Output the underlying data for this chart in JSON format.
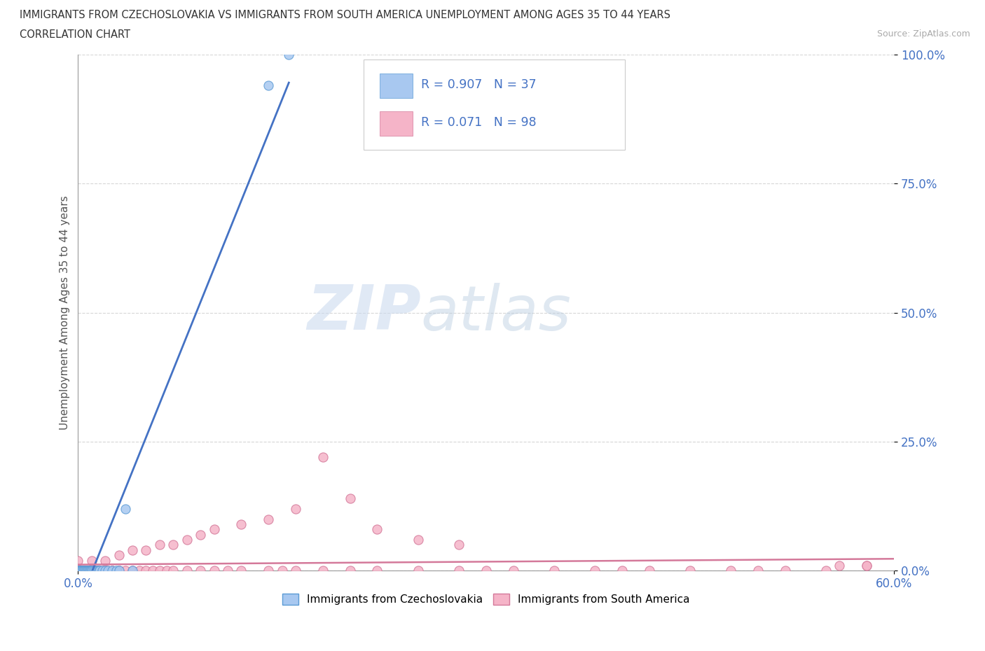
{
  "title_line1": "IMMIGRANTS FROM CZECHOSLOVAKIA VS IMMIGRANTS FROM SOUTH AMERICA UNEMPLOYMENT AMONG AGES 35 TO 44 YEARS",
  "title_line2": "CORRELATION CHART",
  "source_text": "Source: ZipAtlas.com",
  "ylabel_text": "Unemployment Among Ages 35 to 44 years",
  "xlim": [
    0.0,
    0.6
  ],
  "ylim": [
    0.0,
    1.0
  ],
  "xtick_vals": [
    0.0,
    0.6
  ],
  "xtick_labels": [
    "0.0%",
    "60.0%"
  ],
  "ytick_vals": [
    0.0,
    0.25,
    0.5,
    0.75,
    1.0
  ],
  "ytick_labels": [
    "0.0%",
    "25.0%",
    "50.0%",
    "75.0%",
    "100.0%"
  ],
  "czech_color": "#a8c8f0",
  "czech_edge_color": "#5b9bd5",
  "czech_line_color": "#4472c4",
  "sa_color": "#f5b4c8",
  "sa_edge_color": "#d4799a",
  "sa_line_color": "#d4799a",
  "tick_color": "#4472c4",
  "legend_color": "#4472c4",
  "watermark_zip": "ZIP",
  "watermark_atlas": "atlas",
  "background_color": "#ffffff",
  "grid_color": "#cccccc",
  "czech_x": [
    0.0,
    0.001,
    0.001,
    0.002,
    0.002,
    0.003,
    0.003,
    0.004,
    0.004,
    0.005,
    0.005,
    0.006,
    0.006,
    0.007,
    0.007,
    0.008,
    0.008,
    0.009,
    0.009,
    0.01,
    0.01,
    0.011,
    0.012,
    0.013,
    0.014,
    0.015,
    0.016,
    0.018,
    0.02,
    0.022,
    0.025,
    0.028,
    0.03,
    0.035,
    0.04,
    0.14,
    0.155
  ],
  "czech_y": [
    0.0,
    0.0,
    0.0,
    0.0,
    0.0,
    0.0,
    0.0,
    0.0,
    0.0,
    0.0,
    0.0,
    0.0,
    0.0,
    0.0,
    0.0,
    0.0,
    0.0,
    0.0,
    0.0,
    0.0,
    0.0,
    0.0,
    0.0,
    0.0,
    0.0,
    0.0,
    0.0,
    0.0,
    0.0,
    0.0,
    0.0,
    0.0,
    0.0,
    0.12,
    0.0,
    0.94,
    1.0
  ],
  "sa_x": [
    0.0,
    0.0,
    0.0,
    0.001,
    0.001,
    0.002,
    0.002,
    0.002,
    0.003,
    0.003,
    0.003,
    0.004,
    0.004,
    0.004,
    0.005,
    0.005,
    0.005,
    0.005,
    0.006,
    0.006,
    0.007,
    0.007,
    0.008,
    0.008,
    0.009,
    0.009,
    0.01,
    0.01,
    0.011,
    0.012,
    0.012,
    0.013,
    0.014,
    0.015,
    0.015,
    0.016,
    0.018,
    0.02,
    0.02,
    0.022,
    0.025,
    0.025,
    0.03,
    0.03,
    0.035,
    0.04,
    0.045,
    0.05,
    0.055,
    0.06,
    0.065,
    0.07,
    0.08,
    0.09,
    0.1,
    0.11,
    0.12,
    0.14,
    0.15,
    0.16,
    0.18,
    0.2,
    0.22,
    0.25,
    0.28,
    0.3,
    0.32,
    0.35,
    0.38,
    0.4,
    0.42,
    0.45,
    0.48,
    0.5,
    0.52,
    0.55,
    0.58,
    0.58,
    0.56,
    0.0,
    0.01,
    0.02,
    0.03,
    0.04,
    0.05,
    0.06,
    0.07,
    0.08,
    0.09,
    0.1,
    0.12,
    0.14,
    0.16,
    0.18,
    0.2,
    0.22,
    0.25,
    0.28
  ],
  "sa_y": [
    0.0,
    0.0,
    0.0,
    0.0,
    0.0,
    0.0,
    0.0,
    0.0,
    0.0,
    0.0,
    0.0,
    0.0,
    0.0,
    0.0,
    0.0,
    0.0,
    0.0,
    0.0,
    0.0,
    0.0,
    0.0,
    0.0,
    0.0,
    0.0,
    0.0,
    0.0,
    0.0,
    0.0,
    0.0,
    0.0,
    0.0,
    0.0,
    0.0,
    0.0,
    0.0,
    0.0,
    0.0,
    0.0,
    0.0,
    0.0,
    0.0,
    0.0,
    0.0,
    0.0,
    0.0,
    0.0,
    0.0,
    0.0,
    0.0,
    0.0,
    0.0,
    0.0,
    0.0,
    0.0,
    0.0,
    0.0,
    0.0,
    0.0,
    0.0,
    0.0,
    0.0,
    0.0,
    0.0,
    0.0,
    0.0,
    0.0,
    0.0,
    0.0,
    0.0,
    0.0,
    0.0,
    0.0,
    0.0,
    0.0,
    0.0,
    0.0,
    0.01,
    0.01,
    0.01,
    0.02,
    0.02,
    0.02,
    0.03,
    0.04,
    0.04,
    0.05,
    0.05,
    0.06,
    0.07,
    0.08,
    0.09,
    0.1,
    0.12,
    0.22,
    0.14,
    0.08,
    0.06,
    0.05
  ]
}
